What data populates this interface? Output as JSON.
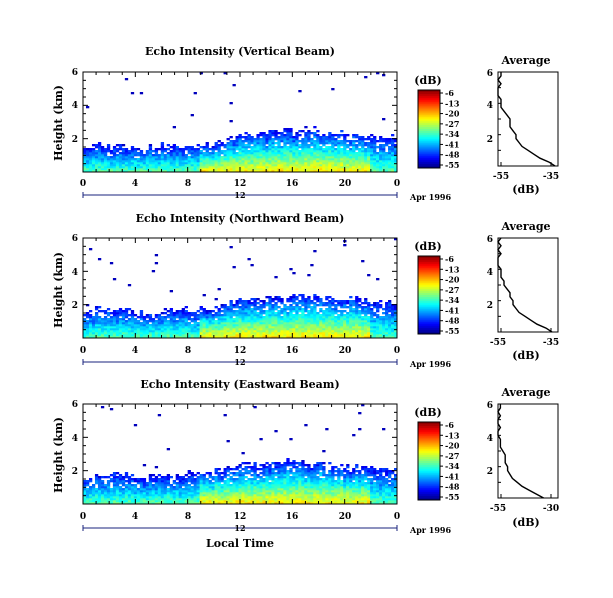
{
  "chart_data": [
    {
      "type": "heatmap",
      "title": "Echo Intensity (Vertical Beam)",
      "ylabel": "Height (km)",
      "xlim": [
        0,
        24
      ],
      "ylim": [
        0,
        6
      ],
      "x_ticks": [
        "0",
        "4",
        "8",
        "12",
        "16",
        "20",
        "0"
      ],
      "y_ticks": [
        "2",
        "4",
        "6"
      ],
      "date_tick": "12",
      "date_label": "Apr 1996",
      "colorbar": {
        "label": "(dB)",
        "ticks": [
          "-6",
          "-13",
          "-20",
          "-27",
          "-34",
          "-41",
          "-48",
          "-55"
        ]
      },
      "echo_layer_top_km": [
        1.5,
        1.6,
        1.6,
        1.6,
        1.5,
        1.6,
        1.6,
        1.6,
        1.6,
        1.7,
        1.9,
        2.1,
        2.3,
        2.4,
        2.4,
        2.5,
        2.5,
        2.6,
        2.5,
        2.4,
        2.3,
        2.2,
        2.2,
        2.1,
        2.0
      ],
      "average_profile": {
        "title": "Average",
        "xlabel": "(dB)",
        "x_ticks": [
          "-55",
          "-35"
        ],
        "y_ticks": [
          "2",
          "4",
          "6"
        ],
        "xlim": [
          -55,
          -35
        ],
        "ylim": [
          0,
          6
        ],
        "height_km": [
          0.0,
          0.25,
          0.5,
          0.75,
          1.0,
          1.25,
          1.5,
          1.75,
          2.0,
          2.25,
          2.5,
          2.75,
          3.0,
          3.25,
          3.5,
          3.75,
          4.0,
          4.25,
          4.5,
          4.75,
          5.0,
          5.25,
          5.5,
          5.75,
          6.0
        ],
        "intensity_db": [
          -36,
          -38,
          -41,
          -43,
          -45,
          -47,
          -48,
          -49,
          -49,
          -50,
          -51,
          -51,
          -51,
          -52,
          -53,
          -54,
          -54,
          -54,
          -55,
          -55,
          -55,
          -54,
          -55,
          -54,
          -54
        ]
      }
    },
    {
      "type": "heatmap",
      "title": "Echo Intensity (Northward Beam)",
      "ylabel": "Height (km)",
      "xlim": [
        0,
        24
      ],
      "ylim": [
        0,
        6
      ],
      "x_ticks": [
        "0",
        "4",
        "8",
        "12",
        "16",
        "20",
        "0"
      ],
      "y_ticks": [
        "2",
        "4",
        "6"
      ],
      "date_tick": "12",
      "date_label": "Apr 1996",
      "colorbar": {
        "label": "(dB)",
        "ticks": [
          "-6",
          "-13",
          "-20",
          "-27",
          "-34",
          "-41",
          "-48",
          "-55"
        ]
      },
      "echo_layer_top_km": [
        1.6,
        1.8,
        1.8,
        1.7,
        1.6,
        1.6,
        1.7,
        1.7,
        1.7,
        1.8,
        2.0,
        2.2,
        2.3,
        2.4,
        2.5,
        2.5,
        2.6,
        2.6,
        2.5,
        2.4,
        2.4,
        2.3,
        2.3,
        2.2,
        2.1
      ],
      "average_profile": {
        "title": "Average",
        "xlabel": "(dB)",
        "x_ticks": [
          "-55",
          "-35"
        ],
        "y_ticks": [
          "2",
          "4",
          "6"
        ],
        "xlim": [
          -55,
          -35
        ],
        "ylim": [
          0,
          6
        ],
        "height_km": [
          0.0,
          0.25,
          0.5,
          0.75,
          1.0,
          1.25,
          1.5,
          1.75,
          2.0,
          2.25,
          2.5,
          2.75,
          3.0,
          3.25,
          3.5,
          3.75,
          4.0,
          4.25,
          4.5,
          4.75,
          5.0,
          5.25,
          5.5,
          5.75,
          6.0
        ],
        "intensity_db": [
          -37,
          -39,
          -42,
          -44,
          -46,
          -48,
          -49,
          -50,
          -50,
          -51,
          -51,
          -52,
          -53,
          -53,
          -54,
          -54,
          -54,
          -55,
          -55,
          -55,
          -54,
          -55,
          -54,
          -55,
          -54
        ]
      }
    },
    {
      "type": "heatmap",
      "title": "Echo Intensity (Eastward Beam)",
      "ylabel": "Height (km)",
      "xlim": [
        0,
        24
      ],
      "ylim": [
        0,
        6
      ],
      "x_ticks": [
        "0",
        "4",
        "8",
        "12",
        "16",
        "20",
        "0"
      ],
      "y_ticks": [
        "2",
        "4",
        "6"
      ],
      "date_tick": "12",
      "date_label": "Apr 1996",
      "xlabel": "Local Time",
      "colorbar": {
        "label": "(dB)",
        "ticks": [
          "-6",
          "-13",
          "-20",
          "-27",
          "-34",
          "-41",
          "-48",
          "-55"
        ]
      },
      "echo_layer_top_km": [
        1.6,
        1.8,
        1.9,
        1.8,
        1.7,
        1.7,
        1.8,
        1.8,
        1.9,
        2.0,
        2.1,
        2.3,
        2.4,
        2.4,
        2.5,
        2.6,
        2.6,
        2.5,
        2.5,
        2.4,
        2.3,
        2.3,
        2.2,
        2.1,
        2.1
      ],
      "average_profile": {
        "title": "Average",
        "xlabel": "(dB)",
        "x_ticks": [
          "-55",
          "-30"
        ],
        "y_ticks": [
          "2",
          "4",
          "6"
        ],
        "xlim": [
          -55,
          -30
        ],
        "ylim": [
          0,
          6
        ],
        "height_km": [
          0.0,
          0.25,
          0.5,
          0.75,
          1.0,
          1.25,
          1.5,
          1.75,
          2.0,
          2.25,
          2.5,
          2.75,
          3.0,
          3.25,
          3.5,
          3.75,
          4.0,
          4.25,
          4.5,
          4.75,
          5.0,
          5.25,
          5.5,
          5.75,
          6.0
        ],
        "intensity_db": [
          -36,
          -39,
          -42,
          -45,
          -47,
          -49,
          -50,
          -51,
          -51,
          -52,
          -52,
          -52,
          -53,
          -54,
          -54,
          -54,
          -55,
          -55,
          -54,
          -55,
          -55,
          -54,
          -55,
          -54,
          -54
        ]
      }
    }
  ]
}
